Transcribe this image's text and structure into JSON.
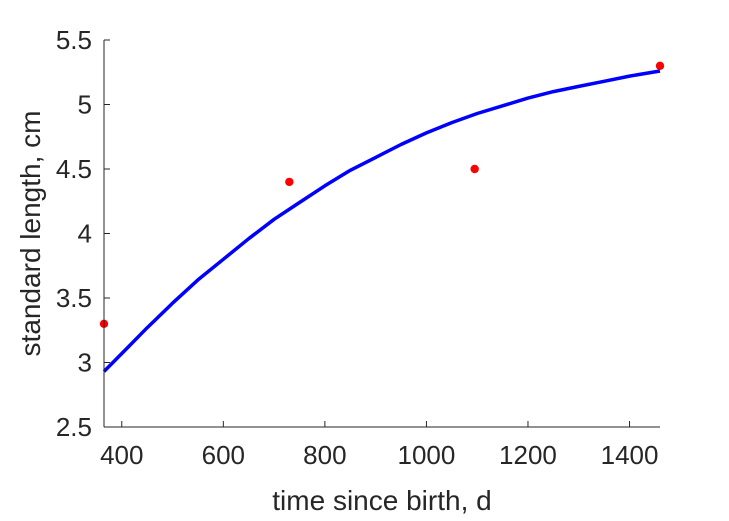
{
  "chart_data": {
    "type": "scatter",
    "title": "",
    "xlabel": "time since birth, d",
    "ylabel": "standard length, cm",
    "xlim": [
      365,
      1460
    ],
    "ylim": [
      2.5,
      5.5
    ],
    "xticks": [
      400,
      600,
      800,
      1000,
      1200,
      1400
    ],
    "yticks": [
      2.5,
      3,
      3.5,
      4,
      4.5,
      5,
      5.5
    ],
    "xtick_labels": [
      "400",
      "600",
      "800",
      "1000",
      "1200",
      "1400"
    ],
    "ytick_labels": [
      "2.5",
      "3",
      "3.5",
      "4",
      "4.5",
      "5",
      "5.5"
    ],
    "grid": false,
    "legend": "none",
    "series": [
      {
        "kind": "points",
        "color": "#ff0000",
        "points": [
          {
            "x": 365,
            "y": 3.3
          },
          {
            "x": 730,
            "y": 4.4
          },
          {
            "x": 1095,
            "y": 4.5
          },
          {
            "x": 1460,
            "y": 5.3
          }
        ]
      },
      {
        "kind": "line",
        "color": "#0000ff",
        "x": [
          365,
          400,
          450,
          500,
          550,
          600,
          650,
          700,
          750,
          800,
          850,
          900,
          950,
          1000,
          1050,
          1100,
          1150,
          1200,
          1250,
          1300,
          1350,
          1400,
          1460
        ],
        "y": [
          2.93,
          3.07,
          3.27,
          3.46,
          3.64,
          3.8,
          3.96,
          4.11,
          4.24,
          4.37,
          4.49,
          4.59,
          4.69,
          4.78,
          4.86,
          4.93,
          4.99,
          5.05,
          5.1,
          5.14,
          5.18,
          5.22,
          5.26
        ]
      }
    ]
  }
}
